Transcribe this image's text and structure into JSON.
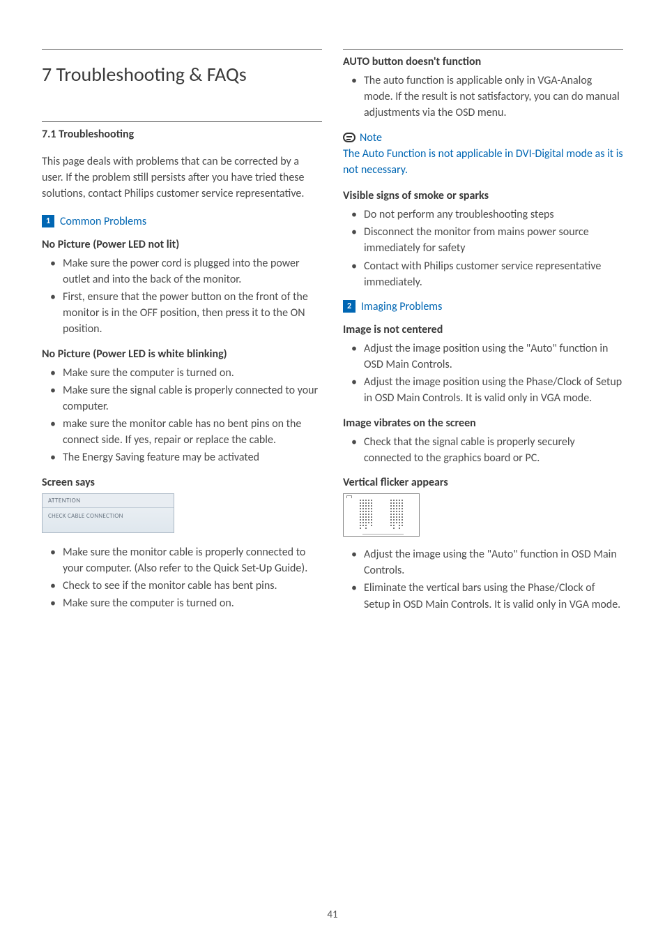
{
  "colors": {
    "accent": "#0066b3",
    "text": "#4a4a4a",
    "heading": "#3a3a3a",
    "rule": "#555555",
    "box_border": "#a9b7c4",
    "box_bg_top": "#eef2f5",
    "box_bg_bottom": "#dfe7ee"
  },
  "page_number": "41",
  "chapter": {
    "title": "7  Troubleshooting & FAQs"
  },
  "section": {
    "title": "7.1 Troubleshooting"
  },
  "intro": "This page deals with problems that can be corrected by a user. If the problem still persists after you have tried these solutions, contact Philips customer service representative.",
  "common": {
    "num": "1",
    "label": "Common Problems",
    "no_picture_led_not_lit": {
      "title": "No Picture (Power LED not lit)",
      "items": [
        "Make sure the power cord is plugged into the power outlet and into the back of the monitor.",
        "First, ensure that the power button on the front of the monitor is in the OFF position, then press it to the ON position."
      ]
    },
    "no_picture_led_blinking": {
      "title": "No Picture (Power LED is white blinking)",
      "items": [
        "Make sure the computer is turned on.",
        "Make sure the signal cable is properly connected to your computer.",
        "make sure the monitor cable has no bent pins on the connect side. If yes, repair or replace the cable.",
        "The Energy Saving feature may be activated"
      ]
    },
    "screen_says": {
      "title": "Screen says",
      "box_header": "ATTENTION",
      "box_body": "CHECK CABLE CONNECTION",
      "items": [
        "Make sure the monitor cable is properly connected to your computer. (Also refer to the Quick Set-Up Guide).",
        "Check to see if the monitor cable has bent pins.",
        "Make sure the computer is turned on."
      ]
    }
  },
  "right": {
    "auto_button": {
      "title": "AUTO button doesn't function",
      "items": [
        "The auto function is applicable only in VGA-Analog mode.  If the result is not satisfactory, you can do manual adjustments via the OSD menu."
      ]
    },
    "note": {
      "label": "Note",
      "text": "The Auto Function is not applicable in DVI-Digital mode as it is not necessary."
    },
    "smoke": {
      "title": "Visible signs of smoke or sparks",
      "items": [
        "Do not perform any troubleshooting steps",
        "Disconnect the monitor from mains power source immediately for safety",
        "Contact with Philips customer service representative immediately."
      ]
    },
    "imaging": {
      "num": "2",
      "label": "Imaging Problems",
      "not_centered": {
        "title": "Image is not centered",
        "items": [
          "Adjust the image position using the \"Auto\" function in OSD Main Controls.",
          "Adjust the image position using the Phase/Clock of Setup in OSD Main Controls. It is valid only in VGA mode."
        ]
      },
      "vibrates": {
        "title": "Image vibrates on the screen",
        "items": [
          "Check that the signal cable is properly securely connected to the graphics board or PC."
        ]
      },
      "vertical_flicker": {
        "title": "Vertical flicker appears",
        "items": [
          "Adjust the image using the \"Auto\" function in OSD Main Controls.",
          "Eliminate the vertical bars using the Phase/Clock of Setup in OSD Main Controls. It is valid only in VGA mode."
        ]
      }
    }
  }
}
